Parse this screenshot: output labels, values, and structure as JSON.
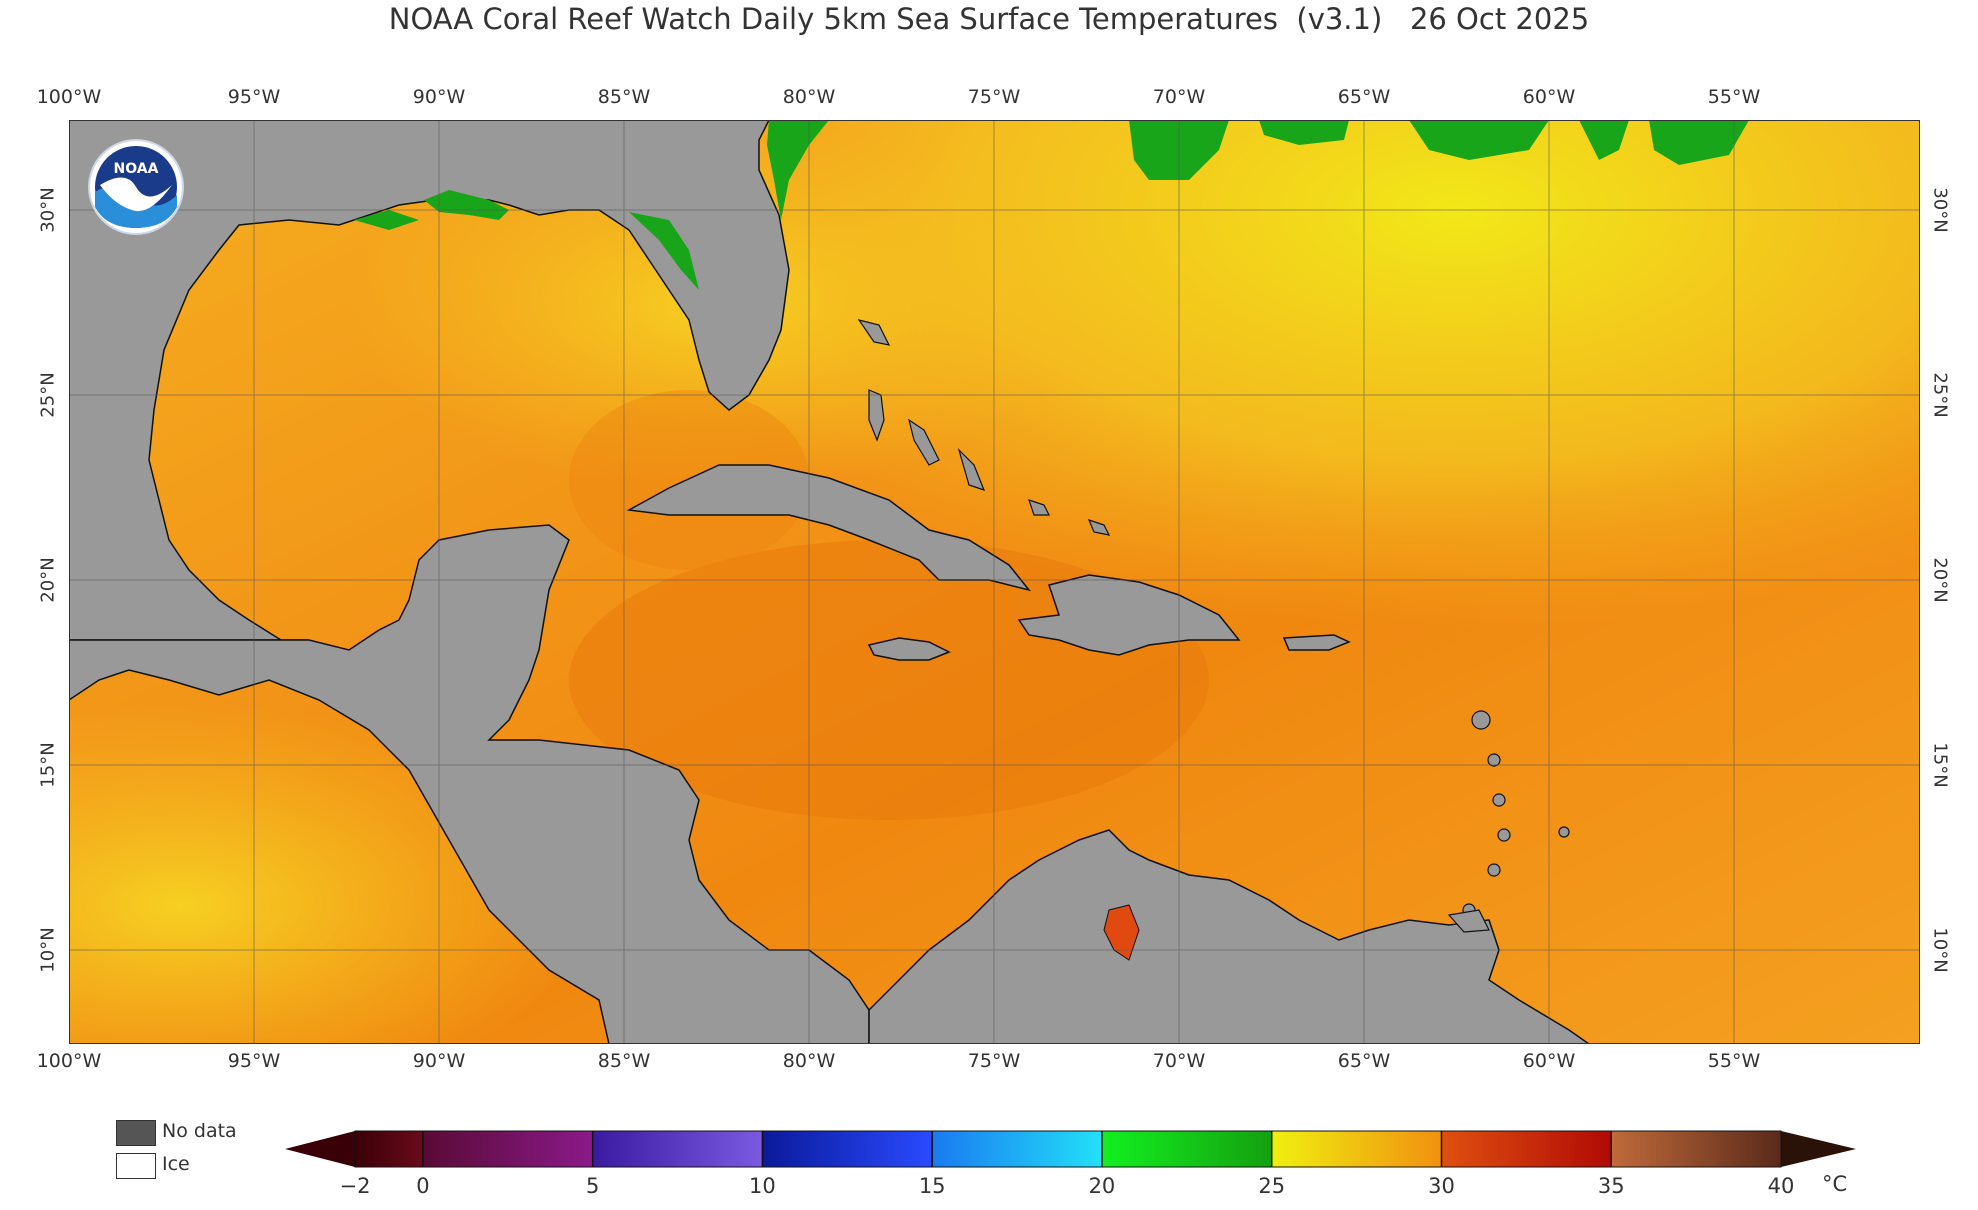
{
  "title": "NOAA Coral Reef Watch Daily 5km Sea Surface Temperatures  (v3.1)   26 Oct 2025",
  "logo": {
    "name": "noaa-logo",
    "text": "NOAA"
  },
  "map": {
    "lon_labels": [
      "100°W",
      "95°W",
      "90°W",
      "85°W",
      "80°W",
      "75°W",
      "70°W",
      "65°W",
      "60°W",
      "55°W"
    ],
    "lat_labels": [
      "30°N",
      "25°N",
      "20°N",
      "15°N",
      "10°N"
    ],
    "colors": {
      "land": "#999999",
      "ocean_warm": "#f08a10",
      "ocean_mid": "#f5a51a",
      "ocean_cool": "#f6c51f",
      "ocean_yellow": "#f0ee10",
      "cool_green": "#19a519",
      "hot_spot": "#e04a10",
      "grid": "#555555"
    }
  },
  "legend": {
    "no_data_label": "No data",
    "ice_label": "Ice",
    "no_data_color": "#555555",
    "ice_color": "#ffffff"
  },
  "colorbar": {
    "ticks": [
      "−2",
      "0",
      "5",
      "10",
      "15",
      "20",
      "25",
      "30",
      "35",
      "40"
    ],
    "unit": "°C",
    "segments": [
      {
        "from": -2,
        "to": 0,
        "c1": "#3a0008",
        "c2": "#6a0a1a"
      },
      {
        "from": 0,
        "to": 5,
        "c1": "#5a0a35",
        "c2": "#8a1a8a"
      },
      {
        "from": 5,
        "to": 10,
        "c1": "#3a1aa0",
        "c2": "#7a5ae0"
      },
      {
        "from": 10,
        "to": 15,
        "c1": "#0a1a9a",
        "c2": "#2a4aff"
      },
      {
        "from": 15,
        "to": 20,
        "c1": "#1a7af0",
        "c2": "#22e0f8"
      },
      {
        "from": 20,
        "to": 25,
        "c1": "#12f020",
        "c2": "#15a010"
      },
      {
        "from": 25,
        "to": 30,
        "c1": "#f0f010",
        "c2": "#f09010"
      },
      {
        "from": 30,
        "to": 35,
        "c1": "#e05010",
        "c2": "#b00a05"
      },
      {
        "from": 35,
        "to": 40,
        "c1": "#c06a3a",
        "c2": "#5a2a1a"
      }
    ]
  }
}
